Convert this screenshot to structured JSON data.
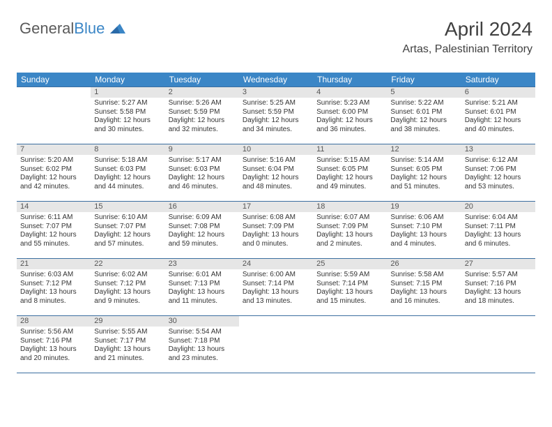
{
  "logo": {
    "part1": "General",
    "part2": "Blue"
  },
  "month": "April 2024",
  "location": "Artas, Palestinian Territory",
  "day_headers": [
    "Sunday",
    "Monday",
    "Tuesday",
    "Wednesday",
    "Thursday",
    "Friday",
    "Saturday"
  ],
  "colors": {
    "header_bg": "#3b86c6",
    "header_text": "#ffffff",
    "border": "#3b6ea0",
    "daynum_bg": "#e6e6e6",
    "daynum_text": "#555555",
    "body_text": "#333333",
    "logo_gray": "#5a5a5a",
    "logo_blue": "#3b86c6"
  },
  "weeks": [
    [
      null,
      {
        "n": "1",
        "sunrise": "5:27 AM",
        "sunset": "5:58 PM",
        "dh": "12",
        "dm": "30"
      },
      {
        "n": "2",
        "sunrise": "5:26 AM",
        "sunset": "5:59 PM",
        "dh": "12",
        "dm": "32"
      },
      {
        "n": "3",
        "sunrise": "5:25 AM",
        "sunset": "5:59 PM",
        "dh": "12",
        "dm": "34"
      },
      {
        "n": "4",
        "sunrise": "5:23 AM",
        "sunset": "6:00 PM",
        "dh": "12",
        "dm": "36"
      },
      {
        "n": "5",
        "sunrise": "5:22 AM",
        "sunset": "6:01 PM",
        "dh": "12",
        "dm": "38"
      },
      {
        "n": "6",
        "sunrise": "5:21 AM",
        "sunset": "6:01 PM",
        "dh": "12",
        "dm": "40"
      }
    ],
    [
      {
        "n": "7",
        "sunrise": "5:20 AM",
        "sunset": "6:02 PM",
        "dh": "12",
        "dm": "42"
      },
      {
        "n": "8",
        "sunrise": "5:18 AM",
        "sunset": "6:03 PM",
        "dh": "12",
        "dm": "44"
      },
      {
        "n": "9",
        "sunrise": "5:17 AM",
        "sunset": "6:03 PM",
        "dh": "12",
        "dm": "46"
      },
      {
        "n": "10",
        "sunrise": "5:16 AM",
        "sunset": "6:04 PM",
        "dh": "12",
        "dm": "48"
      },
      {
        "n": "11",
        "sunrise": "5:15 AM",
        "sunset": "6:05 PM",
        "dh": "12",
        "dm": "49"
      },
      {
        "n": "12",
        "sunrise": "5:14 AM",
        "sunset": "6:05 PM",
        "dh": "12",
        "dm": "51"
      },
      {
        "n": "13",
        "sunrise": "6:12 AM",
        "sunset": "7:06 PM",
        "dh": "12",
        "dm": "53"
      }
    ],
    [
      {
        "n": "14",
        "sunrise": "6:11 AM",
        "sunset": "7:07 PM",
        "dh": "12",
        "dm": "55"
      },
      {
        "n": "15",
        "sunrise": "6:10 AM",
        "sunset": "7:07 PM",
        "dh": "12",
        "dm": "57"
      },
      {
        "n": "16",
        "sunrise": "6:09 AM",
        "sunset": "7:08 PM",
        "dh": "12",
        "dm": "59"
      },
      {
        "n": "17",
        "sunrise": "6:08 AM",
        "sunset": "7:09 PM",
        "dh": "13",
        "dm": "0"
      },
      {
        "n": "18",
        "sunrise": "6:07 AM",
        "sunset": "7:09 PM",
        "dh": "13",
        "dm": "2"
      },
      {
        "n": "19",
        "sunrise": "6:06 AM",
        "sunset": "7:10 PM",
        "dh": "13",
        "dm": "4"
      },
      {
        "n": "20",
        "sunrise": "6:04 AM",
        "sunset": "7:11 PM",
        "dh": "13",
        "dm": "6"
      }
    ],
    [
      {
        "n": "21",
        "sunrise": "6:03 AM",
        "sunset": "7:12 PM",
        "dh": "13",
        "dm": "8"
      },
      {
        "n": "22",
        "sunrise": "6:02 AM",
        "sunset": "7:12 PM",
        "dh": "13",
        "dm": "9"
      },
      {
        "n": "23",
        "sunrise": "6:01 AM",
        "sunset": "7:13 PM",
        "dh": "13",
        "dm": "11"
      },
      {
        "n": "24",
        "sunrise": "6:00 AM",
        "sunset": "7:14 PM",
        "dh": "13",
        "dm": "13"
      },
      {
        "n": "25",
        "sunrise": "5:59 AM",
        "sunset": "7:14 PM",
        "dh": "13",
        "dm": "15"
      },
      {
        "n": "26",
        "sunrise": "5:58 AM",
        "sunset": "7:15 PM",
        "dh": "13",
        "dm": "16"
      },
      {
        "n": "27",
        "sunrise": "5:57 AM",
        "sunset": "7:16 PM",
        "dh": "13",
        "dm": "18"
      }
    ],
    [
      {
        "n": "28",
        "sunrise": "5:56 AM",
        "sunset": "7:16 PM",
        "dh": "13",
        "dm": "20"
      },
      {
        "n": "29",
        "sunrise": "5:55 AM",
        "sunset": "7:17 PM",
        "dh": "13",
        "dm": "21"
      },
      {
        "n": "30",
        "sunrise": "5:54 AM",
        "sunset": "7:18 PM",
        "dh": "13",
        "dm": "23"
      },
      null,
      null,
      null,
      null
    ]
  ],
  "labels": {
    "sunrise": "Sunrise:",
    "sunset": "Sunset:",
    "daylight": "Daylight:",
    "hours": "hours",
    "and": "and",
    "minutes": "minutes."
  }
}
